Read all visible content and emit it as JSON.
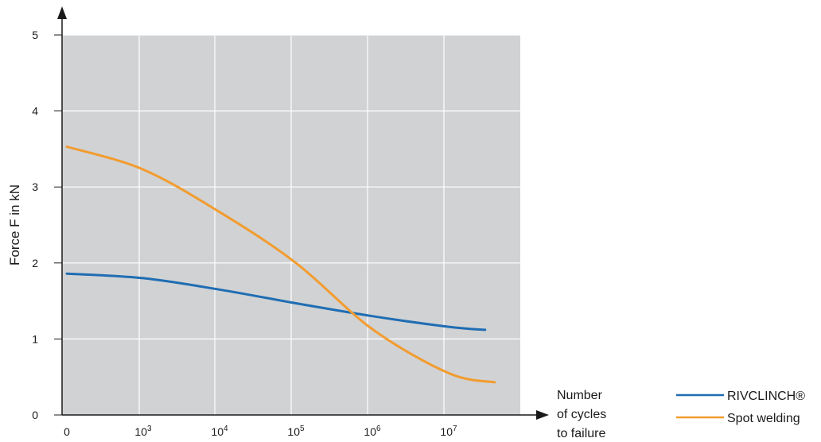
{
  "chart_data": {
    "type": "line",
    "title": "",
    "ylabel": "Force F in kN",
    "xlabel_lines": [
      "Number",
      "of cycles",
      "to failure"
    ],
    "x_ticks": [
      {
        "label": "0",
        "exp": ""
      },
      {
        "label": "10",
        "exp": "3"
      },
      {
        "label": "10",
        "exp": "4"
      },
      {
        "label": "10",
        "exp": "5"
      },
      {
        "label": "10",
        "exp": "6"
      },
      {
        "label": "10",
        "exp": "7"
      }
    ],
    "y_ticks": [
      "0",
      "1",
      "2",
      "3",
      "4",
      "5"
    ],
    "ylim": [
      0,
      5
    ],
    "x_scale": "log cycles, first tick at 0",
    "grid": true,
    "legend_position": "bottom-right",
    "series": [
      {
        "name": "RIVCLINCH®",
        "color": "#1f6db3",
        "x": [
          0,
          1000,
          10000,
          100000,
          1000000,
          10000000,
          30000000
        ],
        "y": [
          1.86,
          1.8,
          1.65,
          1.47,
          1.3,
          1.16,
          1.12
        ]
      },
      {
        "name": "Spot welding",
        "color": "#f29c2f",
        "x": [
          0,
          1000,
          10000,
          100000,
          1000000,
          10000000,
          40000000
        ],
        "y": [
          3.53,
          3.23,
          2.67,
          2.0,
          1.13,
          0.55,
          0.43
        ]
      }
    ]
  }
}
